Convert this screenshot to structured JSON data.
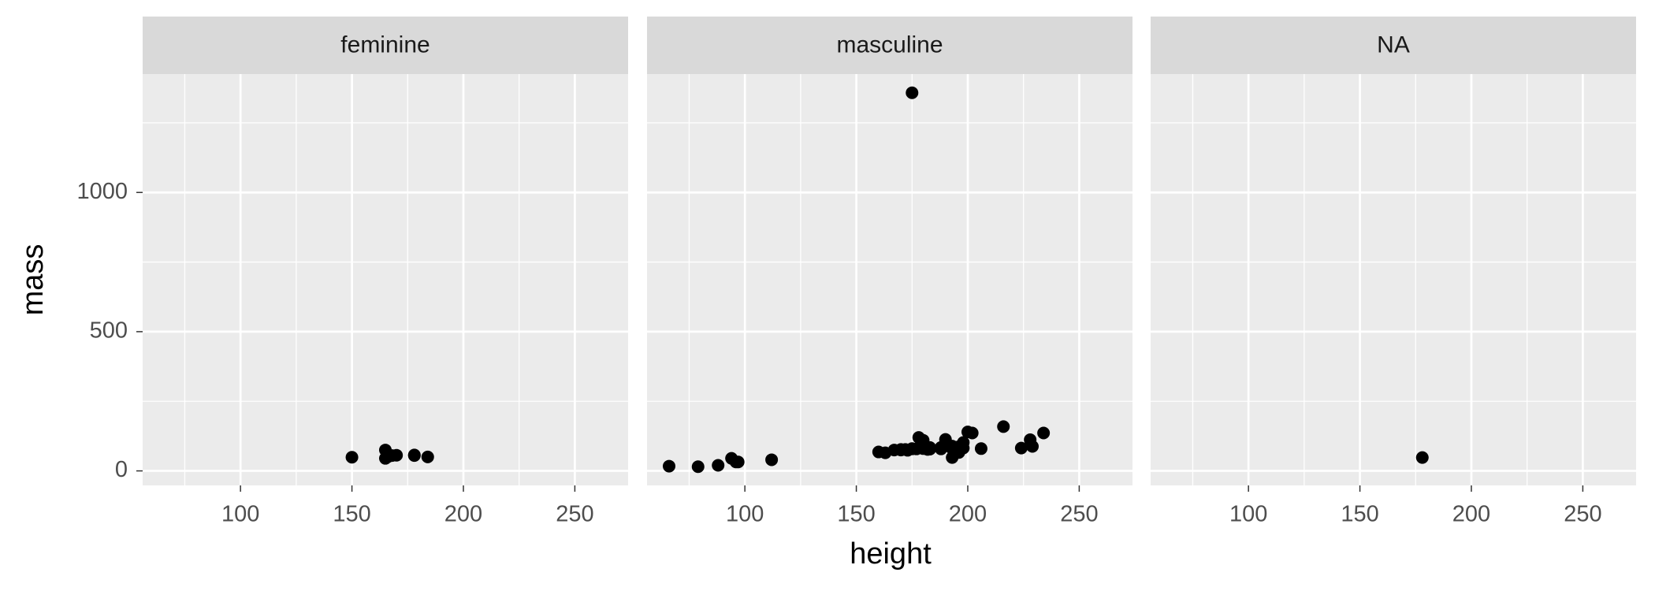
{
  "chart_data": {
    "type": "scatter",
    "x_label": "height",
    "y_label": "mass",
    "xlim": [
      56.1,
      273.9
    ],
    "ylim": [
      -52.15,
      1425.15
    ],
    "xticks": [
      100,
      150,
      200,
      250
    ],
    "yticks": [
      0,
      500,
      1000
    ],
    "xminor": [
      75,
      125,
      175,
      225
    ],
    "yminor": [
      250,
      750,
      1250
    ],
    "grid": true,
    "color": "#000000",
    "panels": [
      {
        "title": "feminine",
        "x": [
          150,
          165,
          165,
          170,
          166,
          168,
          184,
          178,
          178
        ],
        "y": [
          49,
          75,
          45,
          56.2,
          50,
          55,
          50,
          55,
          57
        ]
      },
      {
        "title": "masculine",
        "x": [
          172,
          167,
          96,
          202,
          178,
          97,
          183,
          182,
          188,
          228,
          180,
          173,
          175,
          170,
          180,
          66,
          170,
          183,
          200,
          190,
          177,
          175,
          180,
          88,
          160,
          193,
          191,
          196,
          224,
          112,
          175,
          94,
          163,
          188,
          198,
          196,
          188,
          79,
          183,
          193,
          183,
          198,
          229,
          216,
          234,
          188,
          206,
          193
        ],
        "y": [
          77,
          75,
          32,
          136,
          120,
          32,
          84,
          77,
          84,
          112,
          80,
          74,
          1358,
          77,
          110,
          17,
          75,
          78.2,
          140,
          113,
          79,
          79,
          83,
          20,
          68,
          89,
          90,
          66,
          82,
          40,
          80,
          45,
          65,
          84,
          82,
          87,
          80,
          15,
          80,
          80,
          79,
          102,
          88,
          159,
          136,
          79,
          80,
          48
        ]
      },
      {
        "title": "NA",
        "x": [
          178
        ],
        "y": [
          48
        ]
      }
    ]
  }
}
